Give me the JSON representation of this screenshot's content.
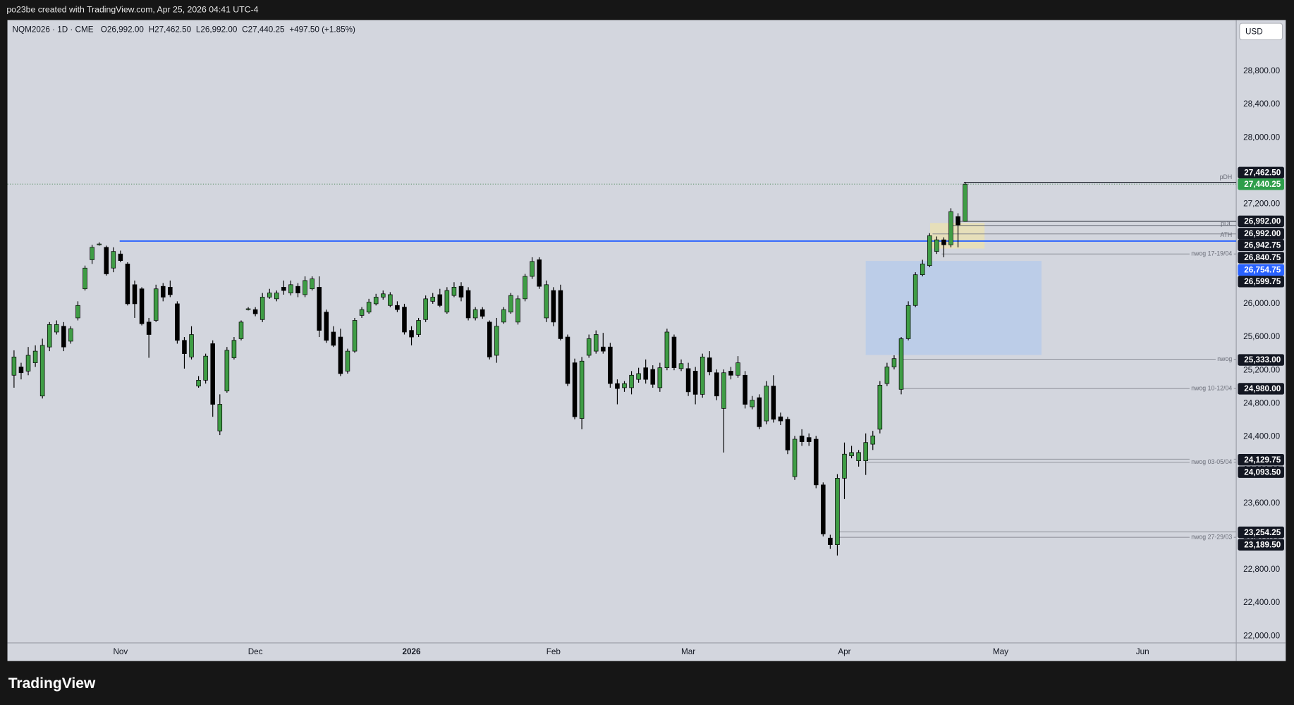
{
  "top_text": "po23be created with TradingView.com, Apr 25, 2026 04:41 UTC-4",
  "brand": "TradingView",
  "chart_data": {
    "type": "candlestick",
    "title": "NQM2026 · 1D · CME",
    "ohlc": [
      {
        "label": "O",
        "text": "26,992.00"
      },
      {
        "label": "H",
        "text": "27,462.50"
      },
      {
        "label": "L",
        "text": "26,992.00"
      },
      {
        "label": "C",
        "text": "27,440.25"
      }
    ],
    "change": "+497.50 (+1.85%)",
    "currency": "USD",
    "up_color": "#3f9d45",
    "down_color": "#000000",
    "grid": false,
    "xlim": [
      -0.93,
      172.2
    ],
    "xticks": [
      {
        "value": 15,
        "label": "Nov"
      },
      {
        "value": 34,
        "label": "Dec"
      },
      {
        "value": 56,
        "label": "2026"
      },
      {
        "value": 76,
        "label": "Feb"
      },
      {
        "value": 95,
        "label": "Mar"
      },
      {
        "value": 117,
        "label": "Apr"
      },
      {
        "value": 139,
        "label": "May"
      },
      {
        "value": 159,
        "label": "Jun"
      }
    ],
    "ylim": [
      21918,
      29416
    ],
    "yticks": [
      {
        "value": 22000,
        "label": "22,000.00"
      },
      {
        "value": 22400,
        "label": "22,400.00"
      },
      {
        "value": 22800,
        "label": "22,800.00"
      },
      {
        "value": 23200,
        "label": "23,200.00"
      },
      {
        "value": 23600,
        "label": "23,600.00"
      },
      {
        "value": 24000,
        "label": "24,000.00"
      },
      {
        "value": 24400,
        "label": "24,400.00"
      },
      {
        "value": 24800,
        "label": "24,800.00"
      },
      {
        "value": 25200,
        "label": "25,200.00"
      },
      {
        "value": 25600,
        "label": "25,600.00"
      },
      {
        "value": 26000,
        "label": "26,000.00"
      },
      {
        "value": 26400,
        "label": "26,400.00"
      },
      {
        "value": 26800,
        "label": "26,800.00"
      },
      {
        "value": 27200,
        "label": "27,200.00"
      },
      {
        "value": 27600,
        "label": "27,600.00"
      },
      {
        "value": 28000,
        "label": "28,000.00"
      },
      {
        "value": 28400,
        "label": "28,400.00"
      },
      {
        "value": 28800,
        "label": "28,800.00"
      }
    ],
    "open": [
      25140,
      25240,
      25190,
      25290,
      24890,
      25480,
      25660,
      25730,
      25550,
      25830,
      26180,
      26530,
      26720,
      26680,
      26430,
      26600,
      26480,
      26230,
      26180,
      25780,
      25800,
      26210,
      26200,
      26000,
      25560,
      25360,
      25010,
      25080,
      25520,
      24470,
      24950,
      25350,
      25580,
      25940,
      25930,
      25810,
      26080,
      26060,
      26200,
      26130,
      26210,
      26110,
      26180,
      26200,
      25900,
      25660,
      25600,
      25190,
      25430,
      25860,
      25900,
      26000,
      26080,
      25980,
      25980,
      25960,
      25680,
      25630,
      25810,
      26030,
      26110,
      25900,
      26100,
      26210,
      26160,
      25830,
      25930,
      25780,
      25380,
      25780,
      25900,
      25780,
      26060,
      26330,
      26530,
      25830,
      26160,
      26160,
      25600,
      25290,
      24620,
      25380,
      25430,
      25480,
      25480,
      25040,
      24990,
      24990,
      25090,
      25230,
      25210,
      24990,
      25230,
      25600,
      25220,
      25220,
      25190,
      24910,
      25350,
      25170,
      24740,
      25190,
      25140,
      25140,
      24760,
      24870,
      24590,
      25010,
      24640,
      24610,
      23920,
      24410,
      24390,
      24370,
      23820,
      23180,
      23100,
      23900,
      24170,
      24110,
      24110,
      24310,
      24490,
      25040,
      25240,
      24970,
      25580,
      25980,
      26350,
      26460,
      26630,
      26770,
      26710,
      27050,
      26992
    ],
    "high": [
      25440,
      25290,
      25480,
      25500,
      25580,
      25780,
      25800,
      25780,
      25730,
      26030,
      26460,
      26710,
      26740,
      26700,
      26680,
      26640,
      26500,
      26280,
      26200,
      25830,
      26230,
      26250,
      26280,
      26030,
      25600,
      25730,
      25130,
      25400,
      25560,
      24910,
      25480,
      25600,
      25800,
      25960,
      25960,
      26130,
      26180,
      26160,
      26280,
      26280,
      26250,
      26330,
      26330,
      26330,
      25930,
      25730,
      25700,
      25460,
      25830,
      25960,
      26060,
      26120,
      26160,
      26140,
      26030,
      26000,
      25730,
      25830,
      26100,
      26130,
      26180,
      26200,
      26260,
      26260,
      26200,
      25960,
      25960,
      25800,
      25830,
      25960,
      26130,
      26100,
      26360,
      26560,
      26560,
      26280,
      26200,
      26230,
      25630,
      25340,
      25360,
      25630,
      25680,
      25650,
      25530,
      25090,
      25070,
      25190,
      25230,
      25330,
      25260,
      25290,
      25700,
      25630,
      25330,
      25290,
      25240,
      25400,
      25430,
      25210,
      25210,
      25240,
      25370,
      25190,
      24890,
      24910,
      25070,
      25140,
      24690,
      24640,
      24410,
      24490,
      24440,
      24410,
      23850,
      23220,
      23950,
      24330,
      24290,
      24240,
      24440,
      24470,
      25070,
      25290,
      25380,
      25600,
      26030,
      26380,
      26530,
      26850,
      26810,
      26800,
      27150,
      27090,
      27462.5
    ],
    "low": [
      24990,
      25090,
      25140,
      25240,
      24860,
      25430,
      25630,
      25430,
      25520,
      25800,
      26160,
      26480,
      26700,
      26340,
      26380,
      26500,
      25980,
      25830,
      25740,
      25350,
      25780,
      26030,
      26080,
      25520,
      25220,
      25330,
      24990,
      25040,
      24640,
      24420,
      24930,
      25330,
      25560,
      25920,
      25850,
      25780,
      26060,
      26030,
      26110,
      26100,
      26080,
      26080,
      26160,
      25600,
      25530,
      25480,
      25130,
      25160,
      25410,
      25830,
      25880,
      25980,
      26050,
      25960,
      25900,
      25630,
      25500,
      25600,
      25780,
      26000,
      25960,
      25880,
      26080,
      26030,
      25800,
      25800,
      25820,
      25330,
      25290,
      25760,
      25880,
      25750,
      26030,
      26300,
      26180,
      25780,
      25730,
      25560,
      25010,
      24610,
      24490,
      25350,
      25400,
      25400,
      24990,
      24790,
      24940,
      24910,
      25050,
      25040,
      24990,
      24940,
      25200,
      25200,
      25190,
      24890,
      24790,
      24870,
      25140,
      24840,
      24210,
      25090,
      25110,
      24740,
      24730,
      24490,
      24550,
      24570,
      24540,
      24190,
      23880,
      24290,
      24290,
      23780,
      23200,
      23050,
      22970,
      23650,
      24140,
      24040,
      23940,
      24240,
      24440,
      25010,
      25210,
      24910,
      25560,
      25960,
      26330,
      26440,
      26600,
      26560,
      26680,
      26680,
      26992
    ],
    "close": [
      25360,
      25170,
      25380,
      25430,
      25500,
      25750,
      25750,
      25480,
      25700,
      25980,
      26430,
      26680,
      26720,
      26360,
      26630,
      26520,
      26000,
      26000,
      25760,
      25630,
      26180,
      26080,
      26110,
      25560,
      25400,
      25630,
      25080,
      25370,
      24790,
      24790,
      25440,
      25560,
      25780,
      25940,
      25880,
      26080,
      26130,
      26130,
      26160,
      26230,
      26130,
      26280,
      26300,
      25680,
      25560,
      25500,
      25160,
      25430,
      25800,
      25930,
      26020,
      26080,
      26120,
      26110,
      25930,
      25660,
      25600,
      25800,
      26060,
      26080,
      25980,
      26160,
      26200,
      26080,
      25830,
      25930,
      25850,
      25360,
      25730,
      25930,
      26100,
      26060,
      26330,
      26510,
      26210,
      26230,
      25780,
      25580,
      25040,
      24640,
      25310,
      25580,
      25630,
      25430,
      25040,
      24980,
      25040,
      25140,
      25160,
      25090,
      25030,
      25230,
      25660,
      25230,
      25280,
      24940,
      24910,
      25360,
      25180,
      24890,
      25170,
      25140,
      25290,
      24790,
      24840,
      24520,
      25010,
      24610,
      24590,
      24240,
      24370,
      24340,
      24340,
      23820,
      23230,
      23100,
      23900,
      24190,
      24210,
      24210,
      24330,
      24410,
      25020,
      25240,
      25340,
      25580,
      25980,
      26350,
      26480,
      26820,
      26770,
      26710,
      27110,
      26950,
      27440.25
    ],
    "zones": [
      {
        "top": 26516,
        "bottom": 25384,
        "color": "rgba(170,198,240,0.55)"
      },
      {
        "top": 26973,
        "bottom": 26665,
        "color": "rgba(250,232,150,0.5)"
      }
    ],
    "levels": [
      {
        "value": 27462.5,
        "label": "27,462.50",
        "note": "pDH",
        "color": "#131722",
        "line_color": "#131722"
      },
      {
        "value": 27440.25,
        "label": "27,440.25",
        "color": "#2e9e4a",
        "line_color": "#6a9a76"
      },
      {
        "value": 26992,
        "label": "26,992.00",
        "color": "#131722",
        "line_color": "#131722"
      },
      {
        "value": 26992,
        "label": "26,992.00",
        "color": "#131722",
        "line_color": "#555a66"
      },
      {
        "value": 26942.75,
        "label": "26,942.75",
        "note": "pDL",
        "color": "#131722",
        "line_color": "#555a66"
      },
      {
        "value": 26840.75,
        "label": "26,840.75",
        "color": "#131722",
        "line_color": "#787b86"
      },
      {
        "value": 26754.75,
        "label": "26,754.75",
        "note": "ATH",
        "color": "#2962ff",
        "line_color": "#2962ff"
      },
      {
        "value": 26599.75,
        "label": "26,599.75",
        "note": "nwog 17-19/04",
        "color": "#131722",
        "line_color": "#8a8d96"
      },
      {
        "value": 25333,
        "label": "25,333.00",
        "note": "nwog",
        "color": "#131722",
        "line_color": "#8a8d96"
      },
      {
        "value": 24980,
        "label": "24,980.00",
        "note": "nwog 10-12/04",
        "color": "#131722",
        "line_color": "#8a8d96"
      },
      {
        "value": 24129.75,
        "label": "24,129.75",
        "color": "#131722",
        "line_color": "#8a8d96"
      },
      {
        "value": 24093.5,
        "label": "24,093.50",
        "note": "nwog 03-05/04",
        "color": "#131722",
        "line_color": "#8a8d96"
      },
      {
        "value": 23254.25,
        "label": "23,254.25",
        "color": "#131722",
        "line_color": "#8a8d96"
      },
      {
        "value": 23189.5,
        "label": "23,189.50",
        "note": "nwog 27-29/03",
        "color": "#131722",
        "line_color": "#8a8d96"
      }
    ]
  }
}
